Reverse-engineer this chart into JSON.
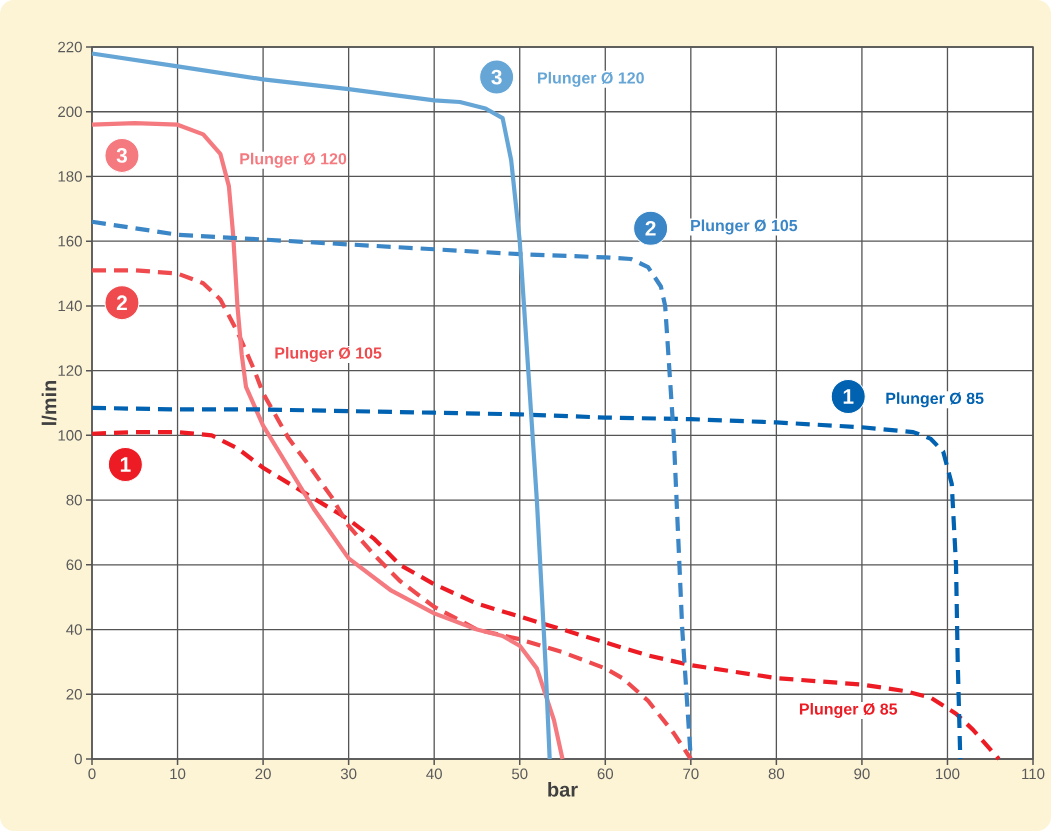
{
  "chart_data": {
    "type": "line",
    "xlabel": "bar",
    "ylabel": "l/min",
    "xlim": [
      0,
      110
    ],
    "ylim": [
      0,
      220
    ],
    "xticks": [
      0,
      10,
      20,
      30,
      40,
      50,
      60,
      70,
      80,
      90,
      100,
      110
    ],
    "yticks": [
      0,
      20,
      40,
      60,
      80,
      100,
      120,
      140,
      160,
      180,
      200,
      220
    ],
    "grid": true,
    "marker": "none",
    "legend": "top right",
    "series": [
      {
        "name": "Plunger Ø 85",
        "color": "#ed1c24",
        "line_style": "dashed",
        "x": [
          0,
          5,
          10,
          14,
          17,
          20,
          25,
          30,
          33,
          36,
          40,
          45,
          50,
          55,
          60,
          65,
          70,
          75,
          80,
          90,
          95,
          98,
          101,
          103,
          106
        ],
        "values": [
          100.5,
          101,
          101,
          100,
          96,
          90,
          82,
          74,
          68,
          60,
          54,
          48,
          44,
          40,
          36,
          32,
          29,
          27,
          25,
          23,
          21,
          19,
          14,
          9,
          0
        ]
      },
      {
        "name": "Plunger Ø 105",
        "color": "#ef4a4e",
        "line_style": "dashed",
        "x": [
          0,
          5,
          10,
          13,
          15,
          17,
          19,
          20,
          23,
          25,
          28,
          30,
          33,
          36,
          40,
          45,
          50,
          55,
          60,
          62,
          65,
          68,
          70
        ],
        "values": [
          151,
          151,
          150,
          147,
          142,
          132,
          120,
          113,
          99,
          92,
          81,
          72,
          63,
          55,
          47,
          40,
          37,
          33,
          28,
          25,
          18,
          8,
          0
        ]
      },
      {
        "name": "Plunger Ø 120",
        "color": "#f47a80",
        "line_style": "solid",
        "x": [
          0,
          5,
          10,
          13,
          15,
          16,
          16.5,
          17,
          17.5,
          18,
          20,
          23,
          26,
          30,
          35,
          40,
          45,
          48,
          50,
          52,
          54,
          55
        ],
        "values": [
          196,
          196.5,
          196,
          193,
          187,
          177,
          162,
          140,
          125,
          115,
          103,
          90,
          77,
          62,
          52,
          45,
          40,
          38,
          35,
          28,
          12,
          0
        ]
      },
      {
        "name": "Plunger Ø 85",
        "color": "#0062b0",
        "line_style": "dashed",
        "x": [
          0,
          10,
          20,
          30,
          40,
          50,
          60,
          70,
          80,
          90,
          96,
          98,
          99.5,
          100.5,
          101,
          101.2,
          101.5
        ],
        "values": [
          108.5,
          108,
          108,
          107.5,
          107,
          106.5,
          105.5,
          105,
          104,
          102.5,
          101,
          99,
          95,
          85,
          60,
          30,
          0
        ]
      },
      {
        "name": "Plunger Ø 105",
        "color": "#3a86c6",
        "line_style": "dashed",
        "x": [
          0,
          10,
          20,
          30,
          40,
          50,
          60,
          63,
          65,
          66.5,
          67,
          68,
          69,
          70
        ],
        "values": [
          166,
          162,
          160.5,
          159,
          157.5,
          156,
          155,
          154.5,
          152,
          146,
          140,
          100,
          40,
          0
        ]
      },
      {
        "name": "Plunger Ø 120",
        "color": "#66a6d6",
        "line_style": "solid",
        "x": [
          0,
          10,
          20,
          30,
          40,
          43,
          46,
          48,
          49,
          50,
          51,
          52,
          53,
          53.5
        ],
        "values": [
          218,
          214,
          210,
          207,
          203.5,
          203,
          201,
          198,
          185,
          160,
          120,
          80,
          30,
          0
        ]
      }
    ],
    "annotations": [
      "1",
      "2",
      "3",
      "1",
      "2",
      "3"
    ]
  }
}
